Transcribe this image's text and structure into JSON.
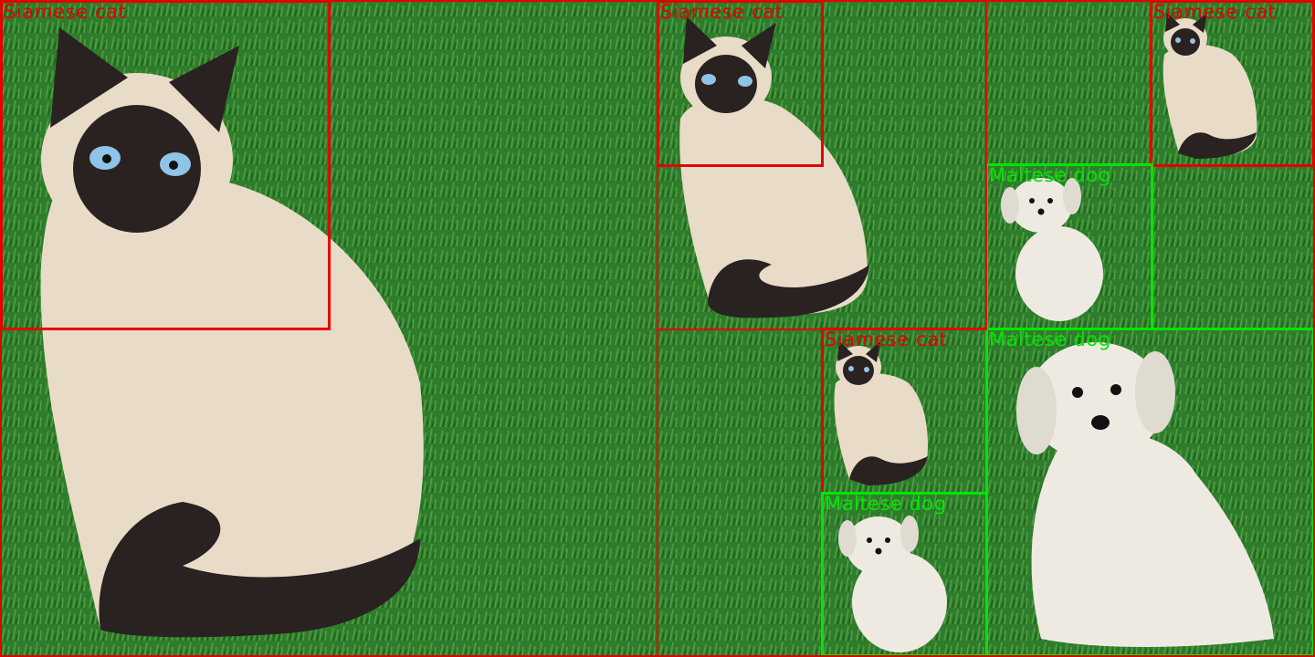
{
  "scene": {
    "background": "grass",
    "colors": {
      "grass": "#2f7d2c",
      "grass_light": "#4fa043",
      "cat_body": "#e8dcc8",
      "cat_point": "#2a2220",
      "cat_eye": "#8fc4e8",
      "dog_coat": "#eeeae2",
      "cat_label": "#e60000",
      "dog_label": "#00e600"
    }
  },
  "detections": [
    {
      "label": "Siamese cat",
      "class": "cat"
    },
    {
      "label": "Siamese cat",
      "class": "cat"
    },
    {
      "label": "Siamese cat",
      "class": "cat"
    },
    {
      "label": "Maltese dog",
      "class": "dog"
    },
    {
      "label": "Siamese cat",
      "class": "cat"
    },
    {
      "label": "Maltese dog",
      "class": "dog"
    },
    {
      "label": "Maltese dog",
      "class": "dog"
    }
  ]
}
